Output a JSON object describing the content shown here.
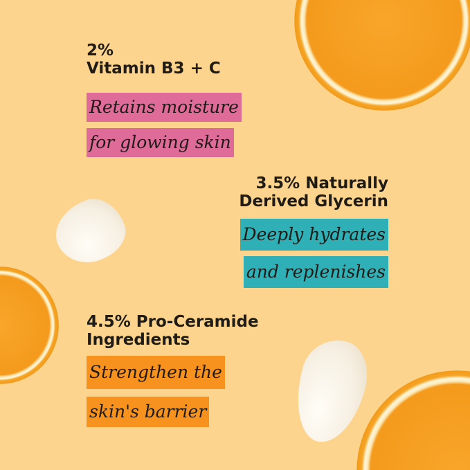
{
  "colors": {
    "background": "#fdd48e",
    "pink": "#de6b98",
    "teal": "#2fb0b6",
    "orange": "#f7921e"
  },
  "sections": [
    {
      "heading_line1": "2%",
      "heading_line2": "Vitamin B3 + C",
      "tag_line1": "Retains moisture",
      "tag_line2": "for glowing skin"
    },
    {
      "heading_line1": "3.5% Naturally",
      "heading_line2": "Derived Glycerin",
      "tag_line1": "Deeply hydrates",
      "tag_line2": "and replenishes"
    },
    {
      "heading_line1": "4.5% Pro-Ceramide",
      "heading_line2": "Ingredients",
      "tag_line1": "Strengthen the",
      "tag_line2": "skin's barrier"
    }
  ]
}
